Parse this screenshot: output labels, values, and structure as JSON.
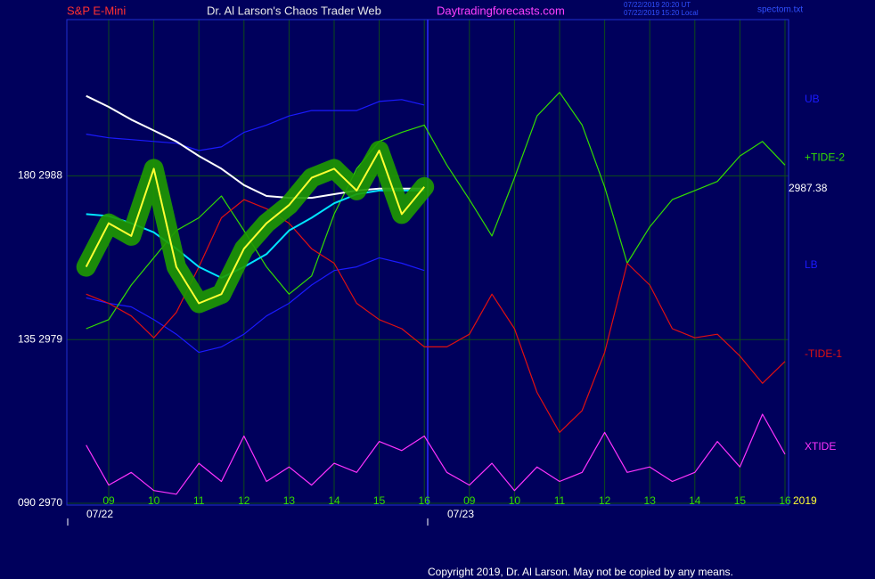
{
  "chart_data": {
    "type": "line",
    "header": {
      "symbol": "S&P E-Mini",
      "site_title": "Dr. Al Larson's Chaos Trader Web",
      "url": "Daytradingforecasts.com",
      "time_ut": "07/22/2019 20:20 UT",
      "time_local": "07/22/2019 15:20 Local",
      "file": "spectom.txt"
    },
    "categories": [
      null,
      "09",
      null,
      "10",
      null,
      "11",
      null,
      "12",
      null,
      "13",
      null,
      "14",
      null,
      "15",
      null,
      "16",
      null,
      "09",
      null,
      "10",
      null,
      "11",
      null,
      "12",
      null,
      "13",
      null,
      "14",
      null,
      "15",
      null,
      "16"
    ],
    "dates": [
      "07/22",
      "07/23"
    ],
    "year": "2019",
    "last_price": "2987.38",
    "copyright": "Copyright 2019, Dr. Al Larson. May not be copied by any means.",
    "ylim": [
      2970,
      2996.6
    ],
    "yticks": [
      {
        "value": 2970,
        "label": "090  2970"
      },
      {
        "value": 2979,
        "label": "135  2979"
      },
      {
        "value": 2988,
        "label": "180  2988"
      }
    ],
    "grid": true,
    "series": [
      {
        "name": "UB",
        "color": "#1a1aff",
        "values": [
          2990.3,
          2990.1,
          2990.0,
          2989.9,
          2989.8,
          2989.4,
          2989.6,
          2990.4,
          2990.8,
          2991.3,
          2991.6,
          2991.6,
          2991.6,
          2992.1,
          2992.2,
          2991.9,
          null,
          null,
          null,
          null,
          null,
          null,
          null,
          null,
          null,
          null,
          null,
          null,
          null,
          null,
          null,
          null
        ]
      },
      {
        "name": "LB",
        "color": "#1a1aff",
        "values": [
          2981.3,
          2981.0,
          2980.8,
          2980.1,
          2979.3,
          2978.3,
          2978.6,
          2979.3,
          2980.3,
          2981.0,
          2982.0,
          2982.8,
          2983.0,
          2983.5,
          2983.2,
          2982.8,
          null,
          null,
          null,
          null,
          null,
          null,
          null,
          null,
          null,
          null,
          null,
          null,
          null,
          null,
          null,
          null
        ]
      },
      {
        "name": "+TIDE-2",
        "color": "#33dd00",
        "values": [
          2979.6,
          2980.1,
          2982.0,
          2983.5,
          2985.0,
          2985.7,
          2986.9,
          2985.0,
          2983.0,
          2981.5,
          2982.5,
          2985.9,
          2988.4,
          2989.9,
          2990.4,
          2990.8,
          2988.6,
          2986.7,
          2984.7,
          2987.9,
          2991.3,
          2992.6,
          2990.8,
          2987.4,
          2983.2,
          2985.2,
          2986.7,
          2987.2,
          2987.7,
          2989.1,
          2989.9,
          2988.6
        ]
      },
      {
        "name": "-TIDE-1",
        "color": "#e01010",
        "values": [
          2981.5,
          2981.0,
          2980.3,
          2979.1,
          2980.5,
          2983.0,
          2985.7,
          2986.7,
          2986.2,
          2985.4,
          2984.0,
          2983.2,
          2981.0,
          2980.1,
          2979.6,
          2978.6,
          2978.6,
          2979.3,
          2981.5,
          2979.6,
          2976.1,
          2973.9,
          2975.1,
          2978.3,
          2983.2,
          2982.0,
          2979.6,
          2979.1,
          2979.3,
          2978.1,
          2976.6,
          2977.8
        ]
      },
      {
        "name": "XTIDE",
        "color": "#ff33ff",
        "values": [
          2973.2,
          2971.0,
          2971.7,
          2970.7,
          2970.5,
          2972.2,
          2971.2,
          2973.7,
          2971.2,
          2972.0,
          2971.0,
          2972.2,
          2971.7,
          2973.4,
          2972.9,
          2973.7,
          2971.7,
          2971.0,
          2972.2,
          2970.7,
          2972.0,
          2971.2,
          2971.7,
          2973.9,
          2971.7,
          2972.0,
          2971.2,
          2971.7,
          2973.4,
          2972.0,
          2974.9,
          2972.7
        ]
      },
      {
        "color": "#ffffff",
        "values": [
          2992.4,
          2991.8,
          2991.1,
          2990.5,
          2989.9,
          2989.1,
          2988.4,
          2987.5,
          2986.9,
          2986.8,
          2986.8,
          2987.0,
          2987.2,
          2987.3,
          2987.3,
          2987.3,
          null,
          null,
          null,
          null,
          null,
          null,
          null,
          null,
          null,
          null,
          null,
          null,
          null,
          null,
          null,
          null
        ]
      },
      {
        "color": "#00e5ff",
        "values": [
          2985.9,
          2985.8,
          2985.4,
          2984.9,
          2984.0,
          2983.0,
          2982.4,
          2983.0,
          2983.7,
          2985.0,
          2985.7,
          2986.5,
          2987.0,
          2987.2,
          2987.2,
          2987.2,
          null,
          null,
          null,
          null,
          null,
          null,
          null,
          null,
          null,
          null,
          null,
          null,
          null,
          null,
          null,
          null
        ]
      },
      {
        "color": "#ffff33",
        "halo": "#1e9a00",
        "values": [
          2983.0,
          2985.4,
          2984.7,
          2988.4,
          2983.0,
          2981.0,
          2981.5,
          2984.0,
          2985.4,
          2986.4,
          2987.9,
          2988.4,
          2987.2,
          2989.4,
          2985.9,
          2987.4,
          null,
          null,
          null,
          null,
          null,
          null,
          null,
          null,
          null,
          null,
          null,
          null,
          null,
          null,
          null,
          null
        ]
      }
    ]
  }
}
